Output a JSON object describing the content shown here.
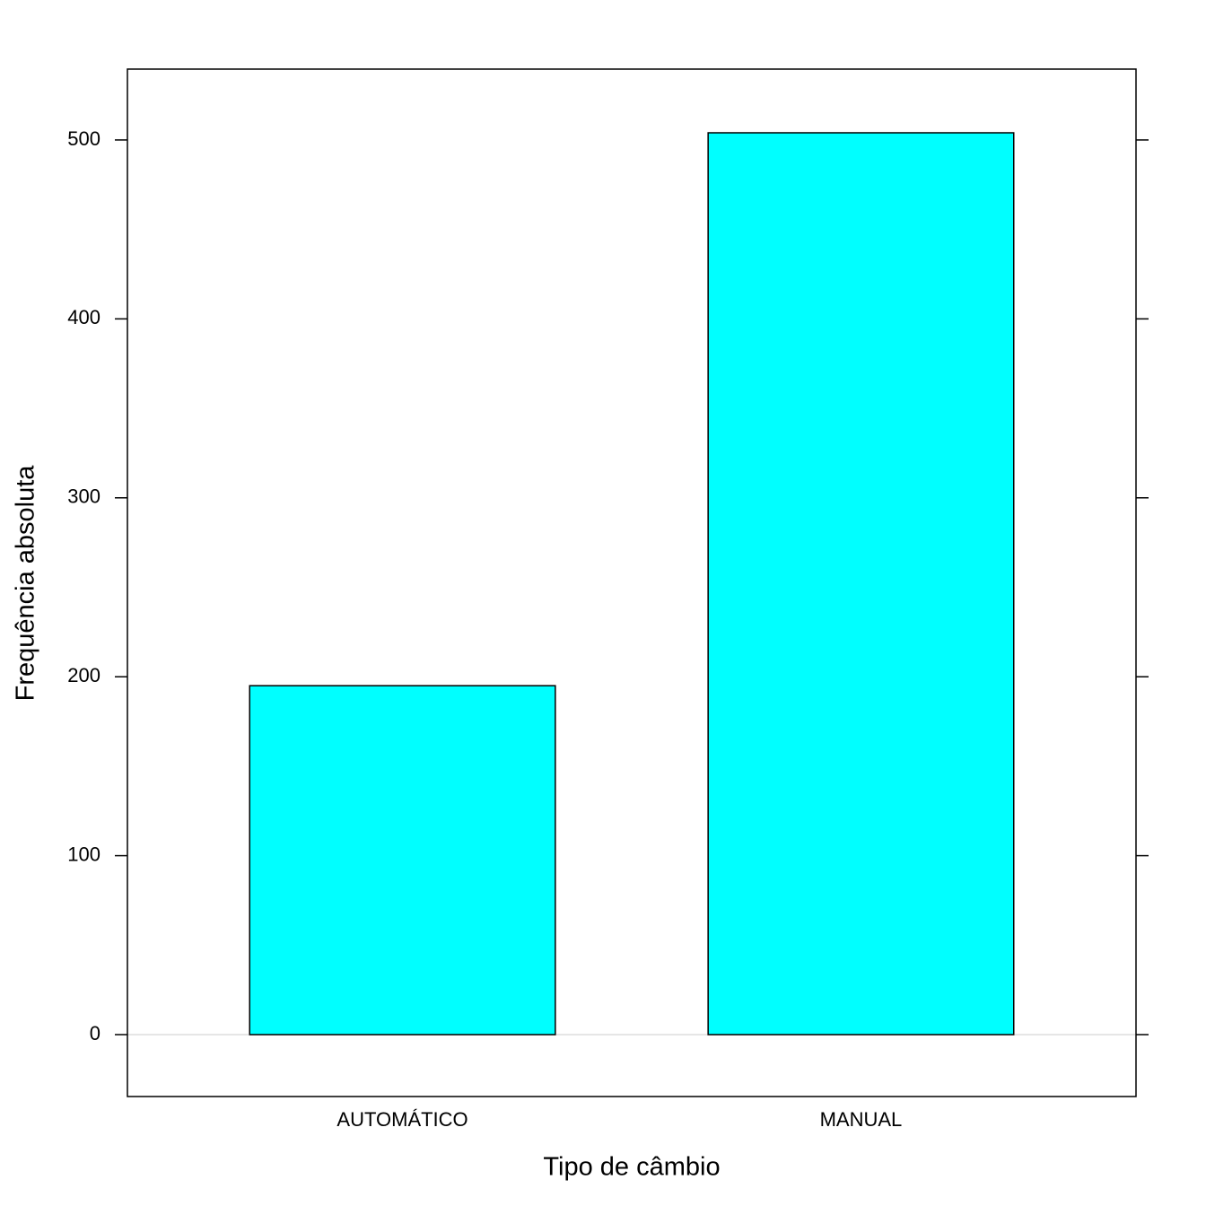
{
  "chart_data": {
    "type": "bar",
    "x_label": "Tipo de câmbio",
    "y_label": "Frequência absoluta",
    "categories": [
      "AUTOMÁTICO",
      "MANUAL"
    ],
    "values": [
      195,
      504
    ],
    "color": "#00ffff",
    "ylim": [
      -34.6,
      539.6
    ],
    "yticks": [
      0,
      100,
      200,
      300,
      400,
      500
    ]
  }
}
